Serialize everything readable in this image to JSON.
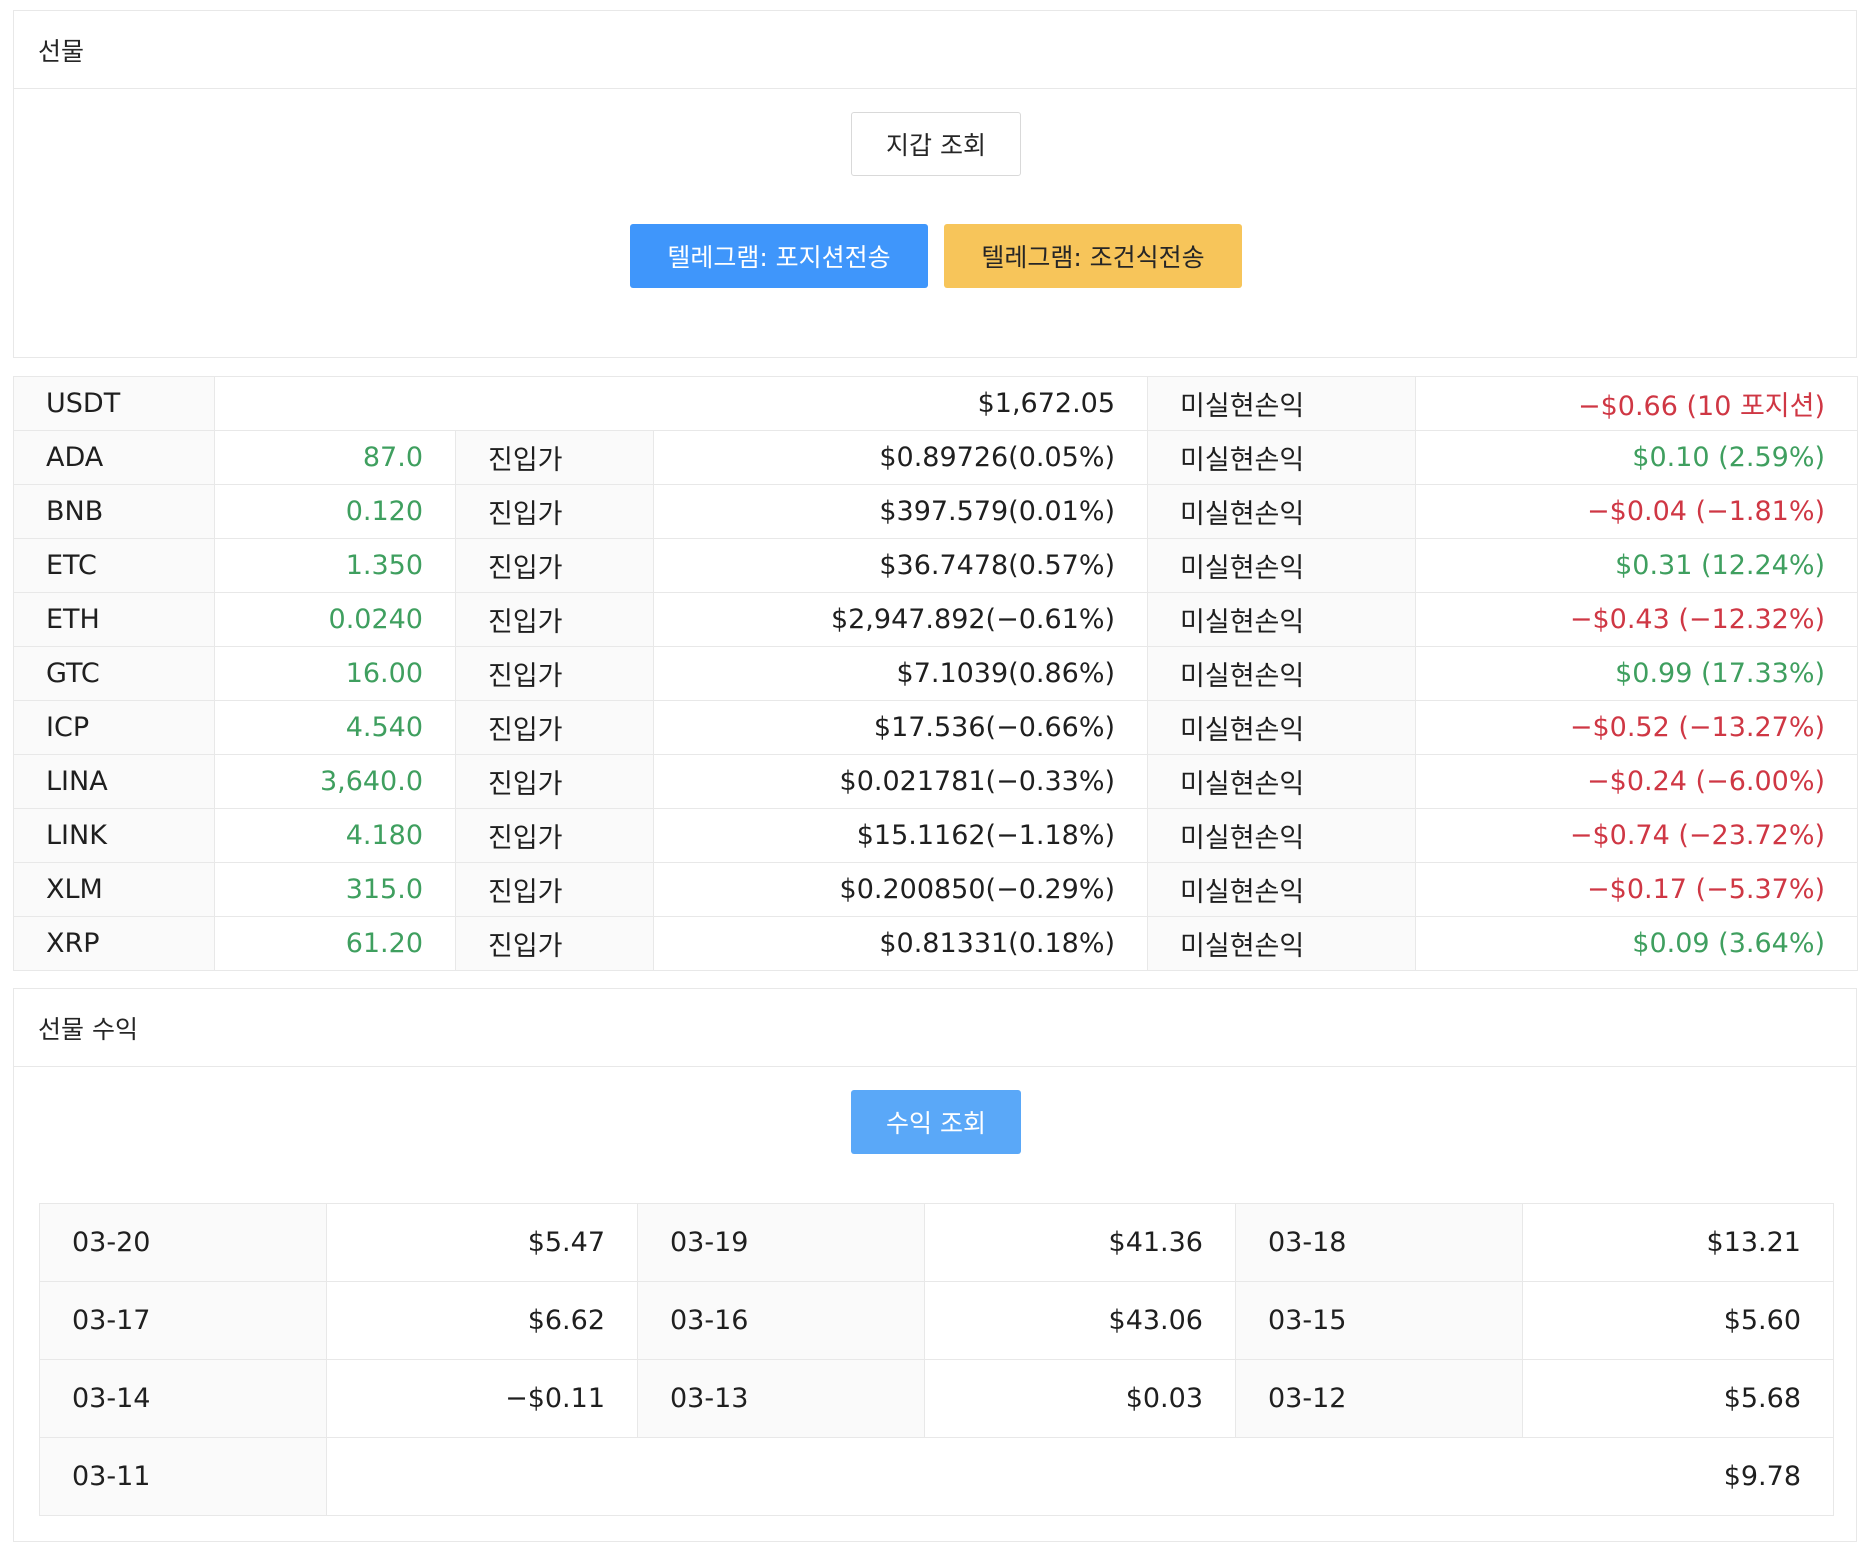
{
  "futures": {
    "title": "선물",
    "wallet_button": "지갑 조회",
    "telegram_position_button": "텔레그램: 포지션전송",
    "telegram_condition_button": "텔레그램: 조건식전송"
  },
  "summary": {
    "asset": "USDT",
    "balance": "$1,672.05",
    "pnl_label": "미실현손익",
    "pnl": "−$0.66 (10 포지션)"
  },
  "positions": [
    {
      "symbol": "ADA",
      "qty": "87.0",
      "entry_label": "진입가",
      "entry": "$0.89726(0.05%)",
      "pnl_label": "미실현손익",
      "pnl": "$0.10 (2.59%)",
      "pnl_sign": "pos"
    },
    {
      "symbol": "BNB",
      "qty": "0.120",
      "entry_label": "진입가",
      "entry": "$397.579(0.01%)",
      "pnl_label": "미실현손익",
      "pnl": "−$0.04 (−1.81%)",
      "pnl_sign": "neg"
    },
    {
      "symbol": "ETC",
      "qty": "1.350",
      "entry_label": "진입가",
      "entry": "$36.7478(0.57%)",
      "pnl_label": "미실현손익",
      "pnl": "$0.31 (12.24%)",
      "pnl_sign": "pos"
    },
    {
      "symbol": "ETH",
      "qty": "0.0240",
      "entry_label": "진입가",
      "entry": "$2,947.892(−0.61%)",
      "pnl_label": "미실현손익",
      "pnl": "−$0.43 (−12.32%)",
      "pnl_sign": "neg"
    },
    {
      "symbol": "GTC",
      "qty": "16.00",
      "entry_label": "진입가",
      "entry": "$7.1039(0.86%)",
      "pnl_label": "미실현손익",
      "pnl": "$0.99 (17.33%)",
      "pnl_sign": "pos"
    },
    {
      "symbol": "ICP",
      "qty": "4.540",
      "entry_label": "진입가",
      "entry": "$17.536(−0.66%)",
      "pnl_label": "미실현손익",
      "pnl": "−$0.52 (−13.27%)",
      "pnl_sign": "neg"
    },
    {
      "symbol": "LINA",
      "qty": "3,640.0",
      "entry_label": "진입가",
      "entry": "$0.021781(−0.33%)",
      "pnl_label": "미실현손익",
      "pnl": "−$0.24 (−6.00%)",
      "pnl_sign": "neg"
    },
    {
      "symbol": "LINK",
      "qty": "4.180",
      "entry_label": "진입가",
      "entry": "$15.1162(−1.18%)",
      "pnl_label": "미실현손익",
      "pnl": "−$0.74 (−23.72%)",
      "pnl_sign": "neg"
    },
    {
      "symbol": "XLM",
      "qty": "315.0",
      "entry_label": "진입가",
      "entry": "$0.200850(−0.29%)",
      "pnl_label": "미실현손익",
      "pnl": "−$0.17 (−5.37%)",
      "pnl_sign": "neg"
    },
    {
      "symbol": "XRP",
      "qty": "61.20",
      "entry_label": "진입가",
      "entry": "$0.81331(0.18%)",
      "pnl_label": "미실현손익",
      "pnl": "$0.09 (3.64%)",
      "pnl_sign": "pos"
    }
  ],
  "profit": {
    "title": "선물 수익",
    "query_button": "수익 조회",
    "days": [
      {
        "date": "03-20",
        "value": "$5.47"
      },
      {
        "date": "03-19",
        "value": "$41.36"
      },
      {
        "date": "03-18",
        "value": "$13.21"
      },
      {
        "date": "03-17",
        "value": "$6.62"
      },
      {
        "date": "03-16",
        "value": "$43.06"
      },
      {
        "date": "03-15",
        "value": "$5.60"
      },
      {
        "date": "03-14",
        "value": "−$0.11"
      },
      {
        "date": "03-13",
        "value": "$0.03"
      },
      {
        "date": "03-12",
        "value": "$5.68"
      },
      {
        "date": "03-11",
        "value": "$9.78"
      }
    ]
  },
  "colors": {
    "positive": "#3f9f5f",
    "negative": "#cf3744",
    "primary": "#3f96fb",
    "warning": "#f7c55a"
  }
}
